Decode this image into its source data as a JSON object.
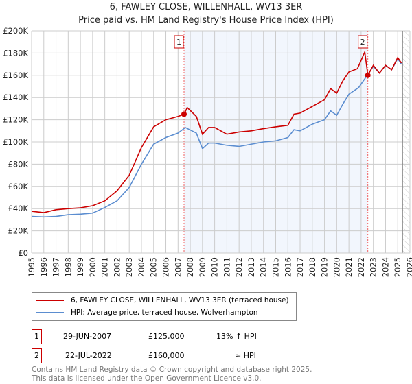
{
  "chart_data": {
    "type": "line",
    "title": "6, FAWLEY CLOSE, WILLENHALL, WV13 3ER",
    "subtitle": "Price paid vs. HM Land Registry's House Price Index (HPI)",
    "xlim": [
      1995,
      2026
    ],
    "ylim": [
      0,
      200000
    ],
    "x_ticks": [
      "1995",
      "1996",
      "1997",
      "1998",
      "1999",
      "2000",
      "2001",
      "2002",
      "2003",
      "2004",
      "2005",
      "2006",
      "2007",
      "2008",
      "2009",
      "2010",
      "2011",
      "2012",
      "2013",
      "2014",
      "2015",
      "2016",
      "2017",
      "2018",
      "2019",
      "2020",
      "2021",
      "2022",
      "2023",
      "2024",
      "2025",
      "2026"
    ],
    "y_ticks": [
      {
        "v": 0,
        "label": "£0"
      },
      {
        "v": 20000,
        "label": "£20K"
      },
      {
        "v": 40000,
        "label": "£40K"
      },
      {
        "v": 60000,
        "label": "£60K"
      },
      {
        "v": 80000,
        "label": "£80K"
      },
      {
        "v": 100000,
        "label": "£100K"
      },
      {
        "v": 120000,
        "label": "£120K"
      },
      {
        "v": 140000,
        "label": "£140K"
      },
      {
        "v": 160000,
        "label": "£160K"
      },
      {
        "v": 180000,
        "label": "£180K"
      },
      {
        "v": 200000,
        "label": "£200K"
      }
    ],
    "grid": true,
    "shaded_range": [
      2007.49,
      2022.55
    ],
    "hatched_from": 2025.4,
    "series": [
      {
        "name": "6, FAWLEY CLOSE, WILLENHALL, WV13 3ER (terraced house)",
        "color": "#cc0000",
        "x": [
          1995,
          1996,
          1997,
          1998,
          1999,
          2000,
          2001,
          2002,
          2003,
          2004,
          2005,
          2006,
          2007,
          2007.5,
          2007.75,
          2008.5,
          2009,
          2009.5,
          2010,
          2010.5,
          2011,
          2012,
          2013,
          2014,
          2015,
          2016,
          2016.5,
          2017,
          2018,
          2019,
          2019.5,
          2020,
          2020.5,
          2021,
          2021.7,
          2022.3,
          2022.55,
          2023,
          2023.5,
          2024,
          2024.5,
          2025,
          2025.3
        ],
        "y": [
          37600,
          36400,
          39000,
          40000,
          40700,
          42600,
          47000,
          56000,
          70000,
          95000,
          113600,
          120000,
          123000,
          125000,
          131000,
          123000,
          107000,
          113000,
          113000,
          110000,
          107000,
          109000,
          110000,
          112000,
          113600,
          115000,
          125000,
          126000,
          132000,
          138000,
          148000,
          144000,
          155000,
          163000,
          166000,
          181000,
          160000,
          169000,
          162000,
          169000,
          165000,
          176000,
          171000
        ]
      },
      {
        "name": "HPI: Average price, terraced house, Wolverhampton",
        "color": "#5b8dd0",
        "x": [
          1995,
          1996,
          1997,
          1998,
          1999,
          2000,
          2001,
          2002,
          2003,
          2004,
          2005,
          2006,
          2007,
          2007.6,
          2008.5,
          2009,
          2009.5,
          2010,
          2011,
          2012,
          2013,
          2014,
          2015,
          2016,
          2016.5,
          2017,
          2018,
          2019,
          2019.5,
          2020,
          2020.5,
          2021,
          2021.8,
          2022.5,
          2023,
          2023.5,
          2024,
          2024.5,
          2025,
          2025.3
        ],
        "y": [
          33000,
          32500,
          33000,
          34500,
          35000,
          36000,
          41000,
          47000,
          59000,
          80000,
          98000,
          104000,
          108000,
          113000,
          108000,
          94000,
          99000,
          99000,
          97000,
          96000,
          98000,
          100000,
          101000,
          104000,
          111000,
          110000,
          116000,
          120000,
          128000,
          124000,
          134000,
          143000,
          149000,
          160000,
          168000,
          162000,
          169000,
          165000,
          175000,
          170000
        ]
      }
    ],
    "sales": [
      {
        "id": "1",
        "x": 2007.49,
        "y": 125000
      },
      {
        "id": "2",
        "x": 2022.55,
        "y": 160000
      }
    ]
  },
  "legend": {
    "property": "6, FAWLEY CLOSE, WILLENHALL, WV13 3ER (terraced house)",
    "hpi": "HPI: Average price, terraced house, Wolverhampton"
  },
  "sales_table": [
    {
      "id": "1",
      "date": "29-JUN-2007",
      "price": "£125,000",
      "vs_hpi": "13% ↑ HPI"
    },
    {
      "id": "2",
      "date": "22-JUL-2022",
      "price": "£160,000",
      "vs_hpi": "≈ HPI"
    }
  ],
  "footer": {
    "line1": "Contains HM Land Registry data © Crown copyright and database right 2025.",
    "line2": "This data is licensed under the Open Government Licence v3.0."
  }
}
